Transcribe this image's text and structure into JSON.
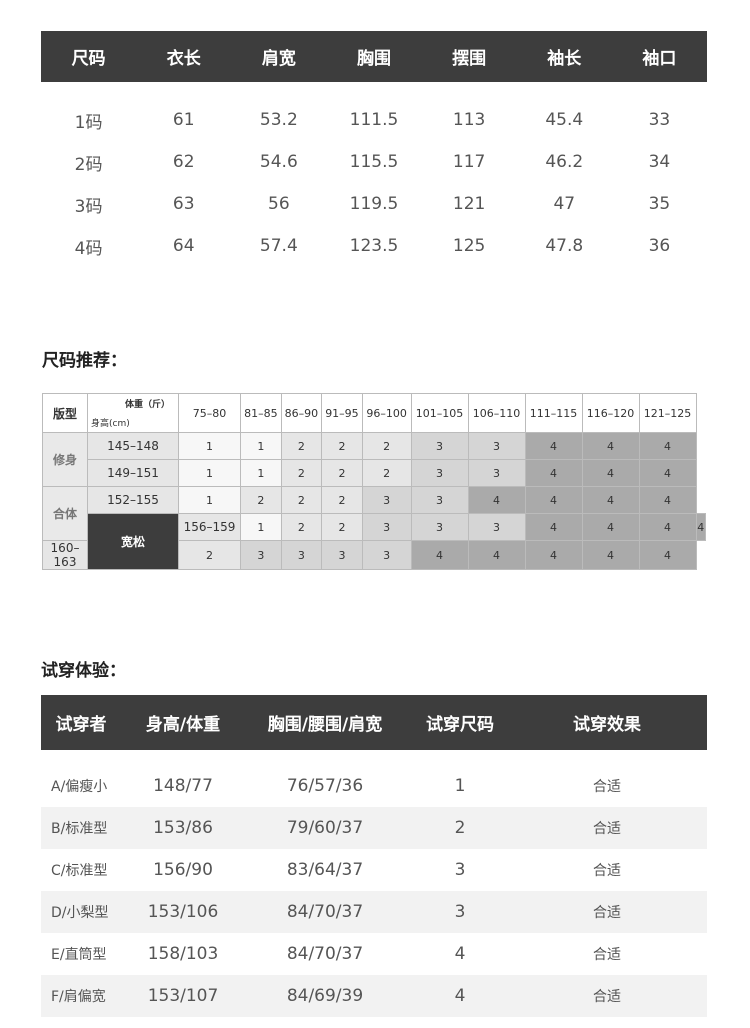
{
  "size_table": {
    "headers": [
      "尺码",
      "衣长",
      "肩宽",
      "胸围",
      "摆围",
      "袖长",
      "袖口"
    ],
    "rows": [
      [
        "1码",
        "61",
        "53.2",
        "111.5",
        "113",
        "45.4",
        "33"
      ],
      [
        "2码",
        "62",
        "54.6",
        "115.5",
        "117",
        "46.2",
        "34"
      ],
      [
        "3码",
        "63",
        "56",
        "119.5",
        "121",
        "47",
        "35"
      ],
      [
        "4码",
        "64",
        "57.4",
        "123.5",
        "125",
        "47.8",
        "36"
      ]
    ]
  },
  "recommend": {
    "title": "尺码推荐：",
    "fit_label": "版型",
    "weight_label": "体重（斤）",
    "height_label": "身高(cm)",
    "fits": [
      "修身",
      "合体",
      "宽松"
    ],
    "weights": [
      "75–80",
      "81–85",
      "86–90",
      "91–95",
      "96–100",
      "101–105",
      "106–110",
      "111–115",
      "116–120",
      "121–125"
    ],
    "rows": [
      {
        "height": "145–148",
        "sizes": [
          1,
          1,
          2,
          2,
          2,
          3,
          3,
          4,
          4,
          4
        ]
      },
      {
        "height": "149–151",
        "sizes": [
          1,
          1,
          2,
          2,
          2,
          3,
          3,
          4,
          4,
          4
        ]
      },
      {
        "height": "152–155",
        "sizes": [
          1,
          2,
          2,
          2,
          3,
          3,
          4,
          4,
          4,
          4
        ]
      },
      {
        "height": "156–159",
        "sizes": [
          1,
          2,
          2,
          3,
          3,
          3,
          4,
          4,
          4,
          4
        ]
      },
      {
        "height": "160–163",
        "sizes": [
          2,
          3,
          3,
          3,
          3,
          4,
          4,
          4,
          4,
          4
        ]
      }
    ]
  },
  "trial": {
    "title": "试穿体验：",
    "headers": [
      "试穿者",
      "身高/体重",
      "胸围/腰围/肩宽",
      "试穿尺码",
      "试穿效果"
    ],
    "rows": [
      [
        "A/偏瘦小",
        "148/77",
        "76/57/36",
        "1",
        "合适"
      ],
      [
        "B/标准型",
        "153/86",
        "79/60/37",
        "2",
        "合适"
      ],
      [
        "C/标准型",
        "156/90",
        "83/64/37",
        "3",
        "合适"
      ],
      [
        "D/小梨型",
        "153/106",
        "84/70/37",
        "3",
        "合适"
      ],
      [
        "E/直筒型",
        "158/103",
        "84/70/37",
        "4",
        "合适"
      ],
      [
        "F/肩偏宽",
        "153/107",
        "84/69/39",
        "4",
        "合适"
      ]
    ]
  }
}
